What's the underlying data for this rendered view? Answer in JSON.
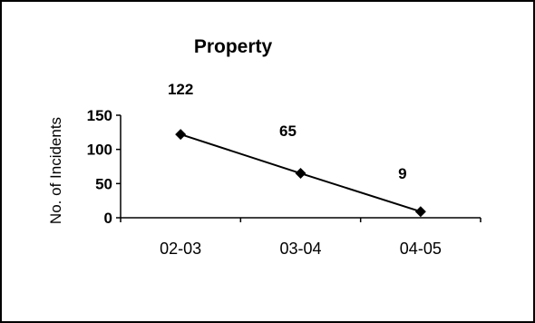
{
  "chart_data": {
    "type": "line",
    "title": "Property",
    "xlabel": "",
    "ylabel": "No. of Incidents",
    "categories": [
      "02-03",
      "03-04",
      "04-05"
    ],
    "values": [
      122,
      65,
      9
    ],
    "data_labels": [
      "122",
      "65",
      "9"
    ],
    "yticks": [
      "0",
      "50",
      "100",
      "150"
    ],
    "ylim": [
      0,
      150
    ],
    "grid": false,
    "legend": "none",
    "line_color": "#000000",
    "marker": "diamond"
  }
}
